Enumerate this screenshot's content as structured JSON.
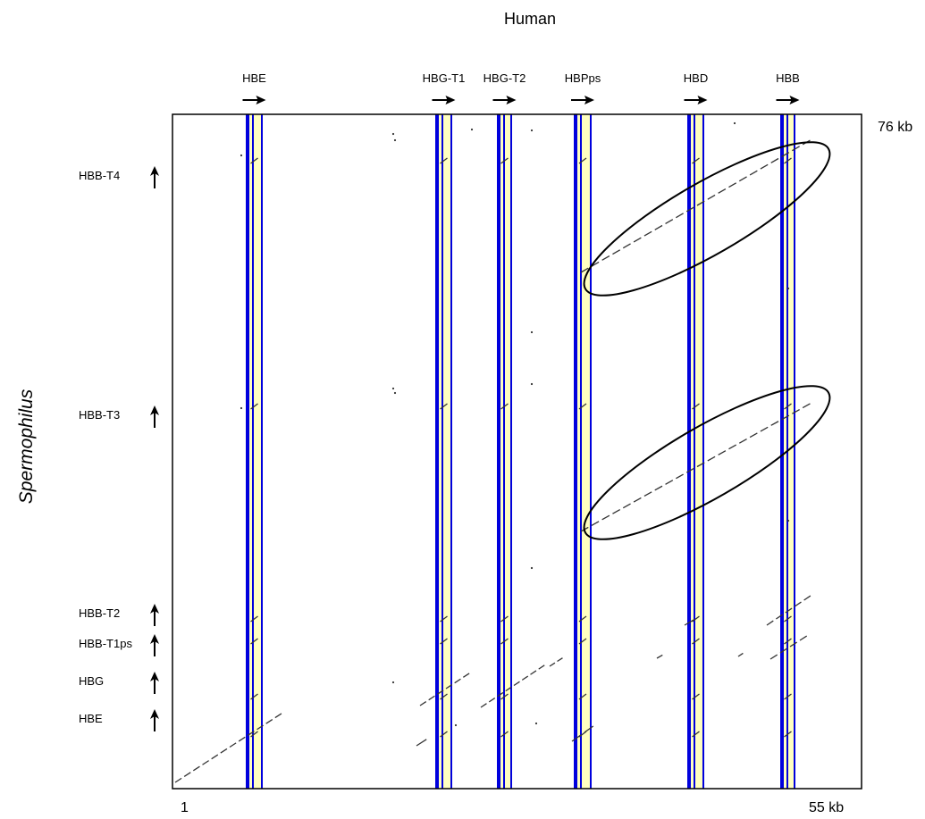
{
  "title": "Human",
  "y_axis_title": "Spermophilus",
  "x_axis": {
    "start": "1",
    "end": "55 kb"
  },
  "y_axis": {
    "end": "76 kb"
  },
  "x_genes": [
    {
      "label": "HBE"
    },
    {
      "label": "HBG-T1"
    },
    {
      "label": "HBG-T2"
    },
    {
      "label": "HBPps"
    },
    {
      "label": "HBD"
    },
    {
      "label": "HBB"
    }
  ],
  "y_genes": [
    {
      "label": "HBB-T4"
    },
    {
      "label": "HBB-T3"
    },
    {
      "label": "HBB-T2"
    },
    {
      "label": "HBB-T1ps"
    },
    {
      "label": "HBG"
    },
    {
      "label": "HBE"
    }
  ],
  "colors": {
    "exon": "#0000dd",
    "intron": "#ffffc0",
    "dots": "#333333",
    "frame": "#000000"
  }
}
